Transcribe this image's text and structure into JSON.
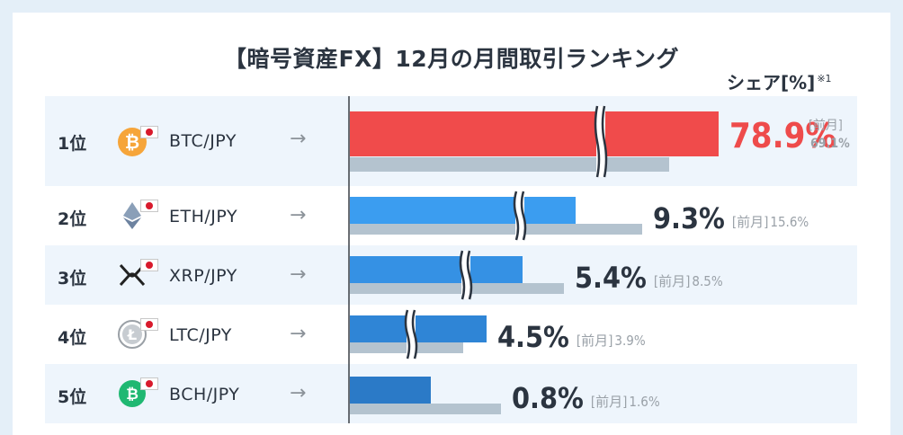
{
  "title": "【暗号資産FX】12月の月間取引ランキング",
  "share_label": "シェア[%]",
  "share_note": "※1",
  "rows": [
    {
      "rank": "1位",
      "pair": "BTC/JPY",
      "arrow": "→",
      "icon": "bitcoin-icon",
      "share_text": "78.9%",
      "prev_label": "[前月]",
      "prev_text": "69.1%"
    },
    {
      "rank": "2位",
      "pair": "ETH/JPY",
      "arrow": "→",
      "icon": "ethereum-icon",
      "share_text": "9.3%",
      "prev_label": "[前月]",
      "prev_text": "15.6%"
    },
    {
      "rank": "3位",
      "pair": "XRP/JPY",
      "arrow": "→",
      "icon": "xrp-icon",
      "share_text": "5.4%",
      "prev_label": "[前月]",
      "prev_text": "8.5%"
    },
    {
      "rank": "4位",
      "pair": "LTC/JPY",
      "arrow": "→",
      "icon": "litecoin-icon",
      "share_text": "4.5%",
      "prev_label": "[前月]",
      "prev_text": "3.9%"
    },
    {
      "rank": "5位",
      "pair": "BCH/JPY",
      "arrow": "→",
      "icon": "bitcoin-cash-icon",
      "share_text": "0.8%",
      "prev_label": "[前月]",
      "prev_text": "1.6%"
    }
  ],
  "chart_data": {
    "type": "bar",
    "categories": [
      "BTC/JPY",
      "ETH/JPY",
      "XRP/JPY",
      "LTC/JPY",
      "BCH/JPY"
    ],
    "series": [
      {
        "values": [
          78.9,
          9.3,
          5.4,
          4.5,
          0.8
        ]
      },
      {
        "name": "[前月]",
        "values": [
          69.1,
          15.6,
          8.5,
          3.9,
          1.6
        ]
      }
    ],
    "axis_break": true,
    "colors": {
      "top": "#ee4b4b",
      "current": [
        "#f04b4b",
        "#3b9df0",
        "#3591e4",
        "#2f85d6",
        "#2b7ac7"
      ],
      "previous": "#b4c3cf",
      "value_text_top": "#ee4b4b",
      "value_text": "#2b3440",
      "prev_text": "#9aa1a8"
    }
  }
}
